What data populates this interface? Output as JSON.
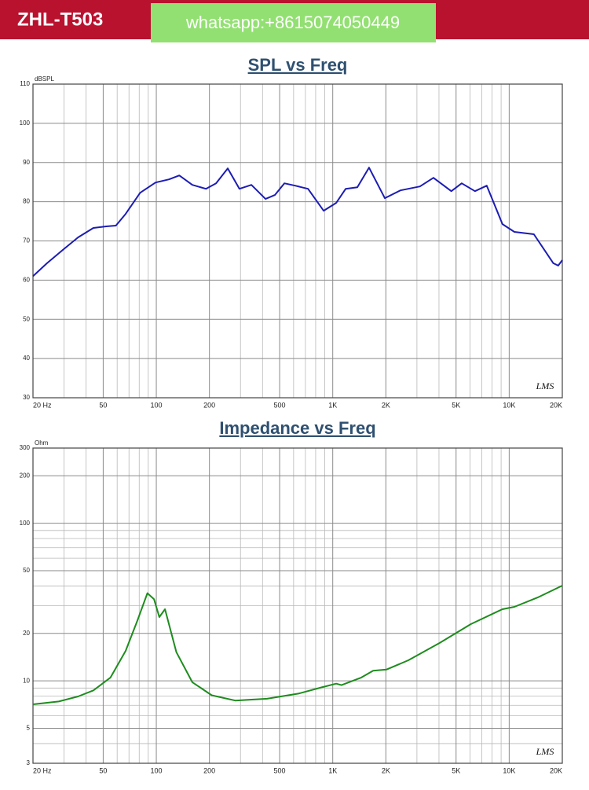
{
  "header": {
    "title": "ZHL-T503",
    "contact": "whatsapp:+8615074050449"
  },
  "chart_data": [
    {
      "type": "line",
      "title": "SPL vs Freq",
      "y_label": "dBSPL",
      "annotation": "LMS",
      "xscale": "log",
      "yscale": "linear",
      "grid": true,
      "color": "#1c1cb4",
      "xlim": [
        20,
        20000
      ],
      "ylim": [
        30,
        110
      ],
      "xticks": [
        {
          "value": 20,
          "label": "20 Hz"
        },
        50,
        100,
        200,
        500,
        {
          "value": 1000,
          "label": "1K"
        },
        {
          "value": 2000,
          "label": "2K"
        },
        {
          "value": 5000,
          "label": "5K"
        },
        {
          "value": 10000,
          "label": "10K"
        },
        {
          "value": 20000,
          "label": "20K"
        }
      ],
      "x_minor_ticks": [
        30,
        40,
        60,
        70,
        80,
        90,
        300,
        400,
        600,
        700,
        800,
        900,
        3000,
        4000,
        6000,
        7000,
        8000,
        9000
      ],
      "yticks": [
        30,
        40,
        50,
        60,
        70,
        80,
        90,
        100,
        110
      ],
      "x": [
        20,
        24,
        29.5,
        36,
        44,
        52,
        59,
        67,
        81,
        99,
        118,
        135,
        160,
        191,
        218,
        254,
        296,
        346,
        416,
        470,
        532,
        612,
        724,
        888,
        1046,
        1184,
        1378,
        1606,
        1972,
        2420,
        3120,
        3720,
        4700,
        5380,
        6400,
        7460,
        9160,
        10700,
        13800,
        17800,
        18960,
        20000
      ],
      "values": [
        61,
        64.3,
        67.7,
        70.9,
        73.3,
        73.7,
        73.9,
        76.9,
        82.3,
        84.9,
        85.7,
        86.7,
        84.3,
        83.3,
        84.7,
        88.5,
        83.3,
        84.3,
        80.7,
        81.7,
        84.7,
        84.1,
        83.3,
        77.7,
        79.7,
        83.3,
        83.7,
        88.7,
        80.9,
        82.9,
        83.9,
        86.1,
        82.7,
        84.7,
        82.7,
        84.1,
        74.3,
        72.3,
        71.7,
        64.3,
        63.7,
        65.1
      ]
    },
    {
      "type": "line",
      "title": "Impedance vs Freq",
      "y_label": "Ohm",
      "annotation": "LMS",
      "xscale": "log",
      "yscale": "log",
      "grid": true,
      "color": "#1e8c1e",
      "xlim": [
        20,
        20000
      ],
      "ylim": [
        3,
        300
      ],
      "xticks": [
        {
          "value": 20,
          "label": "20 Hz"
        },
        50,
        100,
        200,
        500,
        {
          "value": 1000,
          "label": "1K"
        },
        {
          "value": 2000,
          "label": "2K"
        },
        {
          "value": 5000,
          "label": "5K"
        },
        {
          "value": 10000,
          "label": "10K"
        },
        {
          "value": 20000,
          "label": "20K"
        }
      ],
      "x_minor_ticks": [
        30,
        40,
        60,
        70,
        80,
        90,
        300,
        400,
        600,
        700,
        800,
        900,
        3000,
        4000,
        6000,
        7000,
        8000,
        9000
      ],
      "yticks": [
        3,
        5,
        10,
        20,
        50,
        100,
        200,
        300
      ],
      "y_minor_ticks": [
        4,
        6,
        7,
        8,
        9,
        30,
        40,
        60,
        70,
        80,
        90
      ],
      "x": [
        20,
        28,
        36,
        44,
        55,
        67,
        78,
        89,
        97,
        104,
        112,
        130,
        160,
        206,
        280,
        424,
        638,
        866,
        1046,
        1120,
        1452,
        1694,
        2014,
        2680,
        4040,
        6060,
        9160,
        10700,
        14500,
        20000
      ],
      "values": [
        7.1,
        7.4,
        7.96,
        8.7,
        10.5,
        15.5,
        24,
        36,
        33,
        25.4,
        28.5,
        15.2,
        9.8,
        8.1,
        7.5,
        7.7,
        8.3,
        9.1,
        9.6,
        9.4,
        10.5,
        11.6,
        11.8,
        13.5,
        17.4,
        22.9,
        28.5,
        29.5,
        33.8,
        40.2
      ]
    }
  ]
}
